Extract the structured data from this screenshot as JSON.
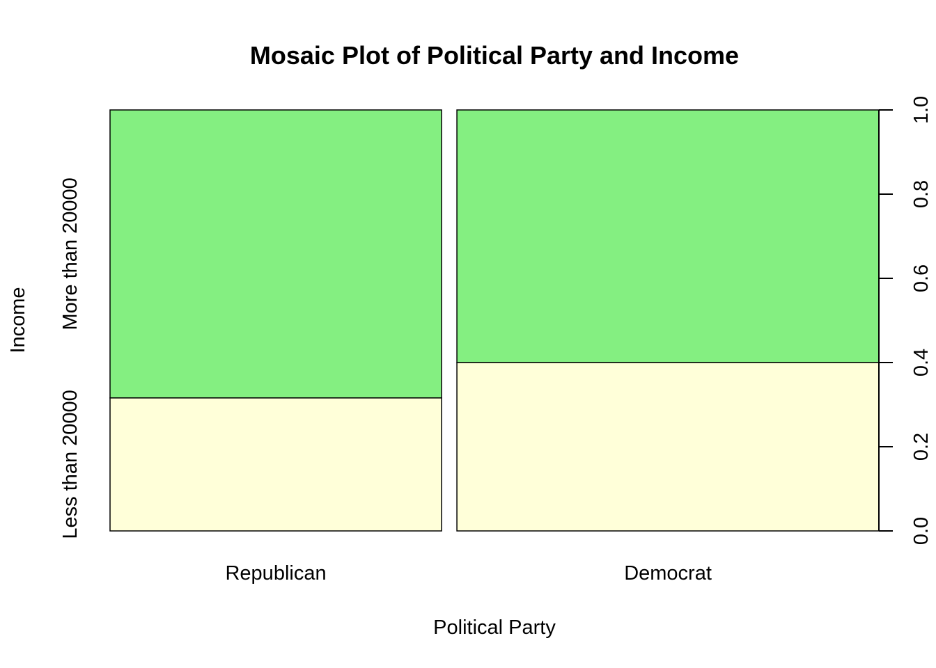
{
  "chart_data": {
    "type": "mosaic",
    "title": "Mosaic Plot of Political Party and Income",
    "xlabel": "Political Party",
    "ylabel": "Income",
    "x_categories": [
      "Republican",
      "Democrat"
    ],
    "x_widths": [
      0.44,
      0.56
    ],
    "y_categories": [
      "Less than 20000",
      "More than 20000"
    ],
    "proportions": [
      {
        "category": "Republican",
        "values": [
          0.316,
          0.684
        ]
      },
      {
        "category": "Democrat",
        "values": [
          0.4,
          0.6
        ]
      }
    ],
    "right_axis": {
      "range": [
        0,
        1
      ],
      "ticks": [
        0.0,
        0.2,
        0.4,
        0.6,
        0.8,
        1.0
      ],
      "tick_labels": [
        "0.0",
        "0.2",
        "0.4",
        "0.6",
        "0.8",
        "1.0"
      ]
    },
    "colors": {
      "Less than 20000": "#FFFFD9",
      "More than 20000": "#84EF81"
    }
  }
}
